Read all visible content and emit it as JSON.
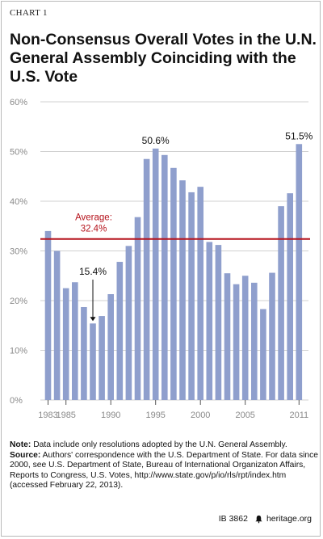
{
  "header": {
    "chart_label": "CHART 1",
    "title": "Non-Consensus Overall Votes in the U.N. General Assembly Coinciding with the U.S. Vote"
  },
  "chart_data": {
    "type": "bar",
    "title": "Non-Consensus Overall Votes in the U.N. General Assembly Coinciding with the U.S. Vote",
    "xlabel": "",
    "ylabel": "",
    "ylim": [
      0,
      60
    ],
    "y_ticks": [
      "0%",
      "10%",
      "20%",
      "30%",
      "40%",
      "50%",
      "60%"
    ],
    "x_tick_labels": [
      "1983",
      "1985",
      "1990",
      "1995",
      "2000",
      "2005",
      "2011"
    ],
    "categories": [
      "1983",
      "1984",
      "1985",
      "1986",
      "1987",
      "1988",
      "1989",
      "1990",
      "1991",
      "1992",
      "1993",
      "1994",
      "1995",
      "1996",
      "1997",
      "1998",
      "1999",
      "2000",
      "2001",
      "2002",
      "2003",
      "2004",
      "2005",
      "2006",
      "2007",
      "2008",
      "2009",
      "2010",
      "2011"
    ],
    "values": [
      34.0,
      30.0,
      22.5,
      23.7,
      18.7,
      15.4,
      16.9,
      21.3,
      27.8,
      31.0,
      36.8,
      48.5,
      50.6,
      49.3,
      46.7,
      44.2,
      41.8,
      42.9,
      31.8,
      31.2,
      25.5,
      23.3,
      25.0,
      23.6,
      18.3,
      25.6,
      39.0,
      41.6,
      51.5
    ],
    "average": 32.4,
    "average_label_line1": "Average:",
    "average_label_line2": "32.4%",
    "annotations": [
      {
        "year": "1995",
        "label": "50.6%"
      },
      {
        "year": "2011",
        "label": "51.5%"
      },
      {
        "year": "1988",
        "label": "15.4%"
      }
    ],
    "grid": true,
    "colors": {
      "bar": "#8f9fcd",
      "average_line": "#b5121b",
      "average_text": "#b5121b",
      "grid": "#d0d0d0",
      "axis_text": "#8a8a8a"
    }
  },
  "note": {
    "note_label": "Note:",
    "note_text": "Data include only resolutions adopted by the U.N. General Assembly.",
    "source_label": "Source:",
    "source_text": "Authors' correspondence with the U.S. Department of State. For data since 2000, see U.S. Department of State, Bureau of International Organizaton Affairs, Reports to Congress, U.S. Votes, http://www.state.gov/p/io/rls/rpt/index.htm (accessed February 22, 2013)."
  },
  "footer": {
    "ib_number": "IB 3862",
    "site": "heritage.org",
    "logo_icon": "liberty-bell-icon"
  }
}
